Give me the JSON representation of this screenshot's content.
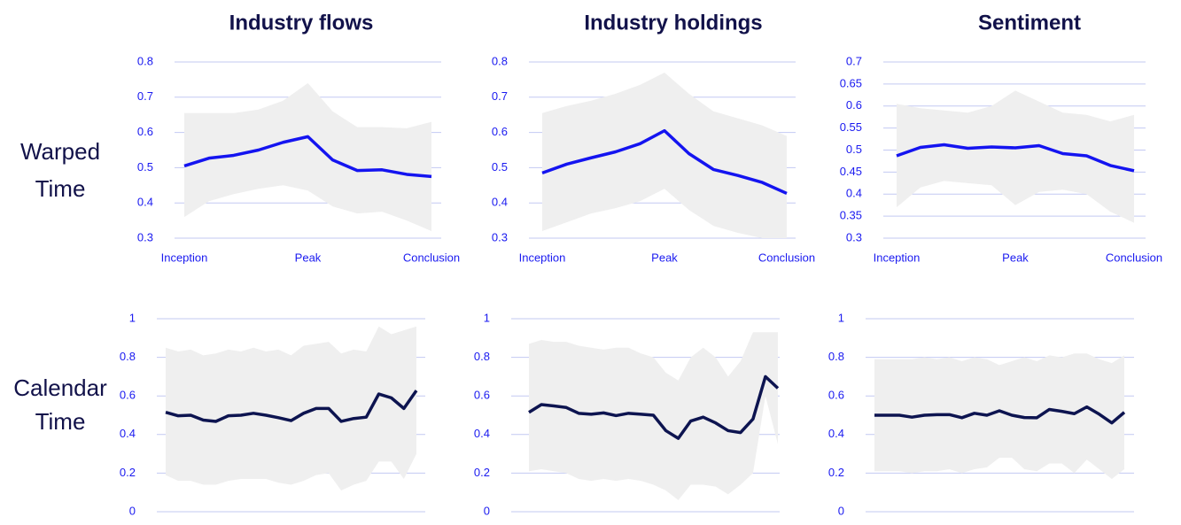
{
  "row_labels": [
    "Warped Time",
    "Calendar Time"
  ],
  "chart_data": [
    {
      "type": "line",
      "title": "Industry flows",
      "categories": [
        "Inception",
        null,
        null,
        null,
        null,
        "Peak",
        null,
        null,
        null,
        null,
        "Conclusion"
      ],
      "values": [
        0.505,
        0.527,
        0.535,
        0.55,
        0.572,
        0.588,
        0.522,
        0.492,
        0.494,
        0.481,
        0.475
      ],
      "upper": [
        0.655,
        0.655,
        0.655,
        0.665,
        0.69,
        0.74,
        0.66,
        0.615,
        0.615,
        0.612,
        0.63
      ],
      "lower": [
        0.36,
        0.405,
        0.425,
        0.44,
        0.45,
        0.435,
        0.39,
        0.37,
        0.375,
        0.35,
        0.32
      ],
      "ylim": [
        0.3,
        0.8
      ],
      "yticks": [
        0.3,
        0.4,
        0.5,
        0.6,
        0.7,
        0.8
      ],
      "color": "#1414f0",
      "band_color": "#efefef",
      "grid": true
    },
    {
      "type": "line",
      "title": "Industry holdings",
      "categories": [
        "Inception",
        null,
        null,
        null,
        null,
        "Peak",
        null,
        null,
        null,
        null,
        "Conclusion"
      ],
      "values": [
        0.485,
        0.51,
        0.528,
        0.545,
        0.568,
        0.605,
        0.54,
        0.495,
        0.478,
        0.458,
        0.427
      ],
      "upper": [
        0.655,
        0.675,
        0.69,
        0.71,
        0.735,
        0.77,
        0.71,
        0.66,
        0.64,
        0.62,
        0.59
      ],
      "lower": [
        0.32,
        0.345,
        0.37,
        0.385,
        0.405,
        0.44,
        0.38,
        0.335,
        0.315,
        0.3,
        0.3
      ],
      "ylim": [
        0.3,
        0.8
      ],
      "yticks": [
        0.3,
        0.4,
        0.5,
        0.6,
        0.7,
        0.8
      ],
      "color": "#1414f0",
      "band_color": "#efefef",
      "grid": true
    },
    {
      "type": "line",
      "title": "Sentiment",
      "categories": [
        "Inception",
        null,
        null,
        null,
        null,
        "Peak",
        null,
        null,
        null,
        null,
        "Conclusion"
      ],
      "values": [
        0.487,
        0.506,
        0.512,
        0.504,
        0.507,
        0.505,
        0.51,
        0.492,
        0.487,
        0.465,
        0.453
      ],
      "upper": [
        0.605,
        0.595,
        0.59,
        0.585,
        0.6,
        0.635,
        0.61,
        0.585,
        0.58,
        0.565,
        0.58
      ],
      "lower": [
        0.37,
        0.415,
        0.43,
        0.425,
        0.42,
        0.375,
        0.405,
        0.41,
        0.4,
        0.36,
        0.335
      ],
      "ylim": [
        0.3,
        0.7
      ],
      "yticks": [
        0.3,
        0.35,
        0.4,
        0.45,
        0.5,
        0.55,
        0.6,
        0.65,
        0.7
      ],
      "color": "#1414f0",
      "band_color": "#efefef",
      "grid": true
    },
    {
      "type": "line",
      "values": [
        0.515,
        0.497,
        0.5,
        0.475,
        0.468,
        0.497,
        0.5,
        0.51,
        0.5,
        0.487,
        0.472,
        0.51,
        0.535,
        0.535,
        0.468,
        0.483,
        0.49,
        0.61,
        0.59,
        0.535,
        0.628
      ],
      "upper": [
        0.85,
        0.83,
        0.84,
        0.81,
        0.82,
        0.84,
        0.83,
        0.85,
        0.83,
        0.84,
        0.81,
        0.86,
        0.87,
        0.88,
        0.82,
        0.84,
        0.83,
        0.96,
        0.92,
        0.94,
        0.96
      ],
      "lower": [
        0.19,
        0.16,
        0.16,
        0.14,
        0.14,
        0.16,
        0.17,
        0.17,
        0.17,
        0.15,
        0.14,
        0.16,
        0.19,
        0.2,
        0.11,
        0.14,
        0.16,
        0.26,
        0.26,
        0.17,
        0.3
      ],
      "ylim": [
        0,
        1
      ],
      "yticks": [
        0,
        0.2,
        0.4,
        0.6,
        0.8,
        1
      ],
      "color": "#0d1450",
      "band_color": "#efefef",
      "grid": true
    },
    {
      "type": "line",
      "values": [
        0.515,
        0.555,
        0.548,
        0.54,
        0.51,
        0.505,
        0.512,
        0.498,
        0.51,
        0.505,
        0.5,
        0.42,
        0.38,
        0.47,
        0.49,
        0.46,
        0.42,
        0.41,
        0.48,
        0.7,
        0.64
      ],
      "upper": [
        0.87,
        0.89,
        0.88,
        0.88,
        0.86,
        0.85,
        0.84,
        0.85,
        0.85,
        0.82,
        0.8,
        0.72,
        0.68,
        0.8,
        0.85,
        0.8,
        0.7,
        0.78,
        0.93,
        0.93,
        0.93
      ],
      "lower": [
        0.21,
        0.22,
        0.21,
        0.2,
        0.17,
        0.16,
        0.17,
        0.16,
        0.17,
        0.16,
        0.14,
        0.11,
        0.06,
        0.14,
        0.14,
        0.13,
        0.09,
        0.14,
        0.2,
        0.6,
        0.35
      ],
      "ylim": [
        0,
        1
      ],
      "yticks": [
        0,
        0.2,
        0.4,
        0.6,
        0.8,
        1
      ],
      "color": "#0d1450",
      "band_color": "#efefef",
      "grid": true
    },
    {
      "type": "line",
      "values": [
        0.5,
        0.5,
        0.5,
        0.49,
        0.5,
        0.503,
        0.503,
        0.487,
        0.51,
        0.5,
        0.523,
        0.5,
        0.488,
        0.487,
        0.53,
        0.52,
        0.508,
        0.543,
        0.505,
        0.46,
        0.515
      ],
      "upper": [
        0.79,
        0.79,
        0.79,
        0.79,
        0.8,
        0.79,
        0.8,
        0.78,
        0.8,
        0.79,
        0.76,
        0.78,
        0.8,
        0.78,
        0.81,
        0.8,
        0.82,
        0.82,
        0.79,
        0.77,
        0.81
      ],
      "lower": [
        0.21,
        0.21,
        0.21,
        0.2,
        0.21,
        0.21,
        0.22,
        0.2,
        0.22,
        0.23,
        0.28,
        0.28,
        0.22,
        0.21,
        0.25,
        0.25,
        0.2,
        0.27,
        0.22,
        0.17,
        0.22
      ],
      "ylim": [
        0,
        1
      ],
      "yticks": [
        0,
        0.2,
        0.4,
        0.6,
        0.8,
        1
      ],
      "color": "#0d1450",
      "band_color": "#efefef",
      "grid": true
    }
  ]
}
